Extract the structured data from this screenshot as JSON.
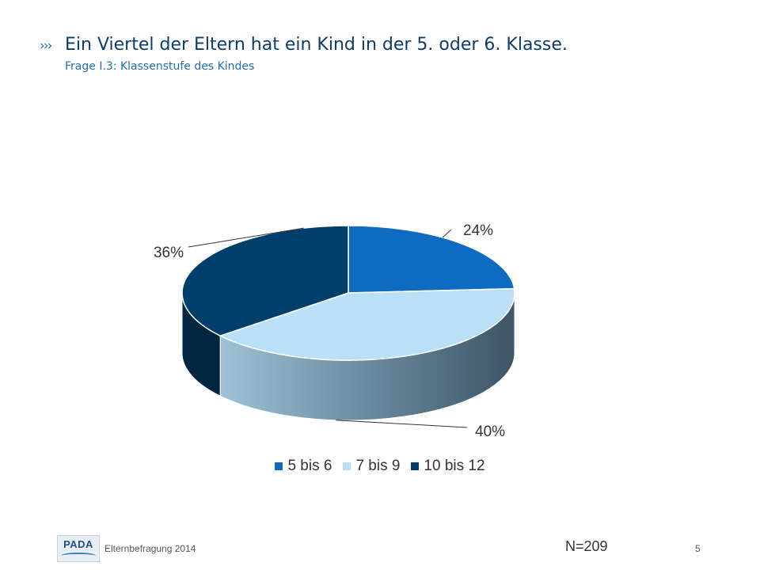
{
  "header": {
    "chevrons": "›››",
    "title": "Ein Viertel der Eltern hat ein Kind in der 5. oder 6. Klasse.",
    "subtitle": "Frage I.3: Klassenstufe des Kindes"
  },
  "chart_data": {
    "type": "pie",
    "style": "3d",
    "title": "",
    "series": [
      {
        "name": "5 bis 6",
        "value": 24,
        "label": "24%",
        "color": "#0f6bbf"
      },
      {
        "name": "7 bis 9",
        "value": 40,
        "label": "40%",
        "color": "#b9e0f7"
      },
      {
        "name": "10 bis 12",
        "value": 36,
        "label": "36%",
        "color": "#003f6b"
      }
    ],
    "legend_position": "bottom"
  },
  "footer": {
    "logo_text": "PADA",
    "text": "Elternbefragung 2014",
    "sample_size": "N=209",
    "page_number": "5"
  }
}
